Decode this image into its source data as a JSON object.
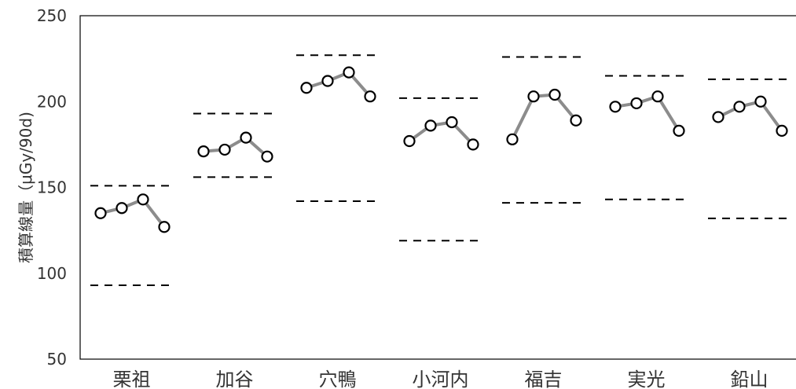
{
  "chart_data": {
    "type": "line",
    "ylabel": "積算線量（μGy/90d)",
    "ylim": [
      50,
      250
    ],
    "yticks": [
      50,
      100,
      150,
      200,
      250
    ],
    "grid": false,
    "categories": [
      "栗祖",
      "加谷",
      "穴鴨",
      "小河内",
      "福吉",
      "実光",
      "鉛山"
    ],
    "groups": [
      {
        "name": "栗祖",
        "values": [
          135,
          138,
          143,
          127
        ],
        "upper": 151,
        "lower": 93
      },
      {
        "name": "加谷",
        "values": [
          171,
          172,
          179,
          168
        ],
        "upper": 193,
        "lower": 156
      },
      {
        "name": "穴鴨",
        "values": [
          208,
          212,
          217,
          203
        ],
        "upper": 227,
        "lower": 142
      },
      {
        "name": "小河内",
        "values": [
          177,
          186,
          188,
          175
        ],
        "upper": 202,
        "lower": 119
      },
      {
        "name": "福吉",
        "values": [
          178,
          203,
          204,
          189
        ],
        "upper": 226,
        "lower": 141
      },
      {
        "name": "実光",
        "values": [
          197,
          199,
          203,
          183
        ],
        "upper": 215,
        "lower": 143
      },
      {
        "name": "鉛山",
        "values": [
          191,
          197,
          200,
          183
        ],
        "upper": 213,
        "lower": 132
      }
    ],
    "colors": {
      "line": "#8c8c8c",
      "marker_stroke": "#000000",
      "marker_fill": "#ffffff",
      "range": "#000000"
    }
  }
}
